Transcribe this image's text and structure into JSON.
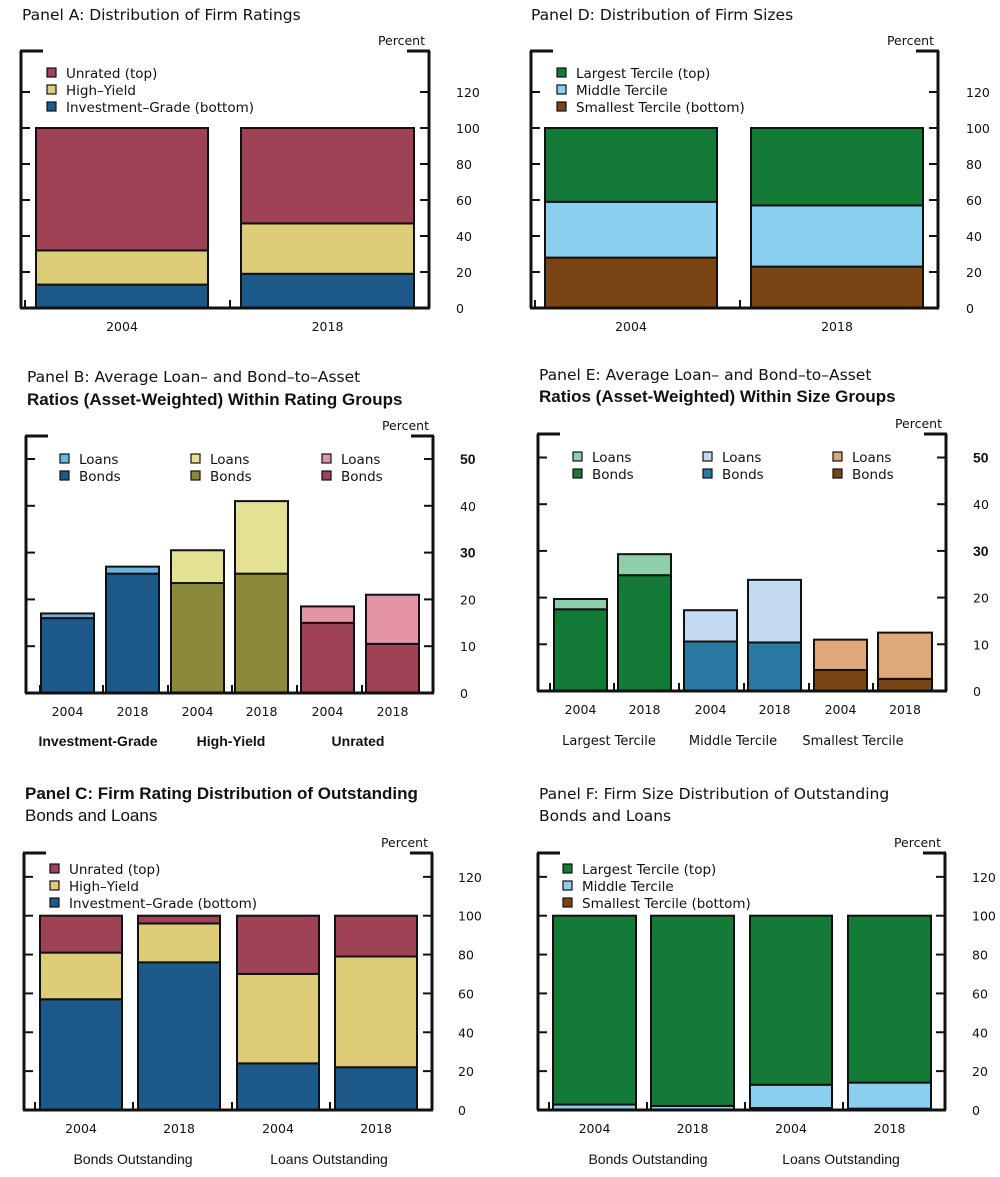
{
  "chart_data": [
    {
      "id": "A",
      "type": "bar",
      "stacked": true,
      "title": "Panel A: Distribution of Firm Ratings",
      "title_lines": [
        "Panel A: Distribution of Firm Ratings"
      ],
      "unit_label": "Percent",
      "ylim": [
        0,
        120
      ],
      "yticks": [
        0,
        20,
        40,
        60,
        80,
        100,
        120
      ],
      "categories": [
        "2004",
        "2018"
      ],
      "groups": [],
      "series": [
        {
          "name": "Investment–Grade (bottom)",
          "color": "#1d5a8a",
          "values": [
            13,
            19
          ]
        },
        {
          "name": "High–Yield",
          "color": "#ddcd78",
          "values": [
            19,
            28
          ]
        },
        {
          "name": "Unrated (top)",
          "color": "#a04255",
          "values": [
            68,
            53
          ]
        }
      ],
      "legend": [
        {
          "label": "Unrated (top)",
          "color": "#a04255"
        },
        {
          "label": "High–Yield",
          "color": "#ddcd78"
        },
        {
          "label": "Investment–Grade (bottom)",
          "color": "#1d5a8a"
        }
      ],
      "legend_position": "top-left"
    },
    {
      "id": "D",
      "type": "bar",
      "stacked": true,
      "title": "Panel  D: Distribution of Firm Sizes",
      "title_lines": [
        "Panel  D: Distribution of Firm Sizes"
      ],
      "unit_label": "Percent",
      "ylim": [
        0,
        120
      ],
      "yticks": [
        0,
        20,
        40,
        60,
        80,
        100,
        120
      ],
      "categories": [
        "2004",
        "2018"
      ],
      "groups": [],
      "series": [
        {
          "name": "Smallest Tercile (bottom)",
          "color": "#7a4415",
          "values": [
            28,
            23
          ]
        },
        {
          "name": "Middle Tercile",
          "color": "#8acfee",
          "values": [
            31,
            34
          ]
        },
        {
          "name": "Largest Tercile (top)",
          "color": "#147a38",
          "values": [
            41,
            43
          ]
        }
      ],
      "legend": [
        {
          "label": "Largest Tercile (top)",
          "color": "#147a38"
        },
        {
          "label": "Middle Tercile",
          "color": "#8acfee"
        },
        {
          "label": "Smallest Tercile (bottom)",
          "color": "#7a4415"
        }
      ],
      "legend_position": "top-left"
    },
    {
      "id": "B",
      "type": "bar",
      "stacked": true,
      "title": "Panel  B: Average Loan– and Bond–to–Asset Ratios (Asset-Weighted) Within Rating Groups",
      "title_lines": [
        "Panel  B: Average Loan– and Bond–to–Asset",
        "Ratios (Asset-Weighted) Within Rating Groups"
      ],
      "unit_label": "Percent",
      "ylim": [
        0,
        55
      ],
      "yticks": [
        0,
        10,
        20,
        30,
        40,
        50
      ],
      "categories": [
        "2004",
        "2018",
        "2004",
        "2018",
        "2004",
        "2018"
      ],
      "groups": [
        "Investment-Grade",
        "High-Yield",
        "Unrated"
      ],
      "series": [
        {
          "name": "Bonds",
          "values": [
            16.0,
            25.5,
            23.5,
            25.5,
            15.0,
            10.5
          ],
          "colors": [
            "#1d5a8a",
            "#1d5a8a",
            "#8a8a3a",
            "#8a8a3a",
            "#a04255",
            "#a04255"
          ]
        },
        {
          "name": "Loans",
          "values": [
            1.0,
            1.5,
            7.0,
            15.5,
            3.5,
            10.5
          ],
          "colors": [
            "#6cb4e2",
            "#6cb4e2",
            "#e3e194",
            "#e3e194",
            "#e494a5",
            "#e494a5"
          ]
        }
      ],
      "legend": [
        {
          "label": "Loans",
          "color": "#6cb4e2"
        },
        {
          "label": "Bonds",
          "color": "#1d5a8a"
        },
        {
          "label": "Loans",
          "color": "#e3e194"
        },
        {
          "label": "Bonds",
          "color": "#8a8a3a"
        },
        {
          "label": "Loans",
          "color": "#e494a5"
        },
        {
          "label": "Bonds",
          "color": "#a04255"
        }
      ],
      "legend_position": "top"
    },
    {
      "id": "E",
      "type": "bar",
      "stacked": true,
      "title": "Panel  E: Average Loan– and Bond–to–Asset Ratios (Asset-Weighted) Within Size Groups",
      "title_lines": [
        "Panel  E: Average Loan– and Bond–to–Asset",
        "Ratios (Asset-Weighted) Within Size Groups"
      ],
      "unit_label": "Percent",
      "ylim": [
        0,
        55
      ],
      "yticks": [
        0,
        10,
        20,
        30,
        40,
        50
      ],
      "categories": [
        "2004",
        "2018",
        "2004",
        "2018",
        "2004",
        "2018"
      ],
      "groups": [
        "Largest Tercile",
        "Middle Tercile",
        "Smallest Tercile"
      ],
      "series": [
        {
          "name": "Bonds",
          "values": [
            17.5,
            24.8,
            10.6,
            10.4,
            4.5,
            2.6
          ],
          "colors": [
            "#147a38",
            "#147a38",
            "#2878a2",
            "#2878a2",
            "#7a4415",
            "#7a4415"
          ]
        },
        {
          "name": "Loans",
          "values": [
            2.2,
            4.5,
            6.7,
            13.4,
            6.5,
            9.9
          ],
          "colors": [
            "#8dcfa9",
            "#8dcfa9",
            "#c4daf0",
            "#c4daf0",
            "#dea878",
            "#dea878"
          ]
        }
      ],
      "legend": [
        {
          "label": "Loans",
          "color": "#8dcfa9"
        },
        {
          "label": "Bonds",
          "color": "#147a38"
        },
        {
          "label": "Loans",
          "color": "#c4daf0"
        },
        {
          "label": "Bonds",
          "color": "#2878a2"
        },
        {
          "label": "Loans",
          "color": "#dea878"
        },
        {
          "label": "Bonds",
          "color": "#7a4415"
        }
      ],
      "legend_position": "top"
    },
    {
      "id": "C",
      "type": "bar",
      "stacked": true,
      "title": "Panel  C: Firm Rating Distribution of Outstanding Bonds and Loans",
      "title_lines": [
        "Panel  C: Firm Rating Distribution of Outstanding",
        "Bonds and Loans"
      ],
      "unit_label": "Percent",
      "ylim": [
        0,
        120
      ],
      "yticks": [
        0,
        20,
        40,
        60,
        80,
        100,
        120
      ],
      "categories": [
        "2004",
        "2018",
        "2004",
        "2018"
      ],
      "groups": [
        "Bonds  Outstanding",
        "Loans Outstanding"
      ],
      "series": [
        {
          "name": "Investment–Grade (bottom)",
          "color": "#1d5a8a",
          "values": [
            57,
            76,
            24,
            22
          ]
        },
        {
          "name": "High–Yield",
          "color": "#ddcd78",
          "values": [
            24,
            20,
            46,
            57
          ]
        },
        {
          "name": "Unrated (top)",
          "color": "#a04255",
          "values": [
            19,
            4,
            30,
            21
          ]
        }
      ],
      "legend": [
        {
          "label": "Unrated (top)",
          "color": "#a04255"
        },
        {
          "label": "High–Yield",
          "color": "#ddcd78"
        },
        {
          "label": "Investment–Grade (bottom)",
          "color": "#1d5a8a"
        }
      ],
      "legend_position": "top-left"
    },
    {
      "id": "F",
      "type": "bar",
      "stacked": true,
      "title": "Panel F: Firm Size Distribution of Outstanding Bonds and Loans",
      "title_lines": [
        "Panel F: Firm Size Distribution of Outstanding",
        "Bonds and Loans"
      ],
      "unit_label": "Percent",
      "ylim": [
        0,
        120
      ],
      "yticks": [
        0,
        20,
        40,
        60,
        80,
        100,
        120
      ],
      "categories": [
        "2004",
        "2018",
        "2004",
        "2018"
      ],
      "groups": [
        "Bonds  Outstanding",
        "Loans Outstanding"
      ],
      "series": [
        {
          "name": "Smallest Tercile (bottom)",
          "color": "#7a4415",
          "values": [
            0.3,
            0.2,
            1.0,
            0.7
          ]
        },
        {
          "name": "Middle Tercile",
          "color": "#8acfee",
          "values": [
            2.5,
            1.9,
            12.0,
            13.4
          ]
        },
        {
          "name": "Largest Tercile (top)",
          "color": "#147a38",
          "values": [
            97.2,
            97.9,
            87.0,
            85.9
          ]
        }
      ],
      "legend": [
        {
          "label": "Largest Tercile (top)",
          "color": "#147a38"
        },
        {
          "label": "Middle Tercile",
          "color": "#8acfee"
        },
        {
          "label": "Smallest Tercile (bottom)",
          "color": "#7a4415"
        }
      ],
      "legend_position": "top-left"
    }
  ]
}
